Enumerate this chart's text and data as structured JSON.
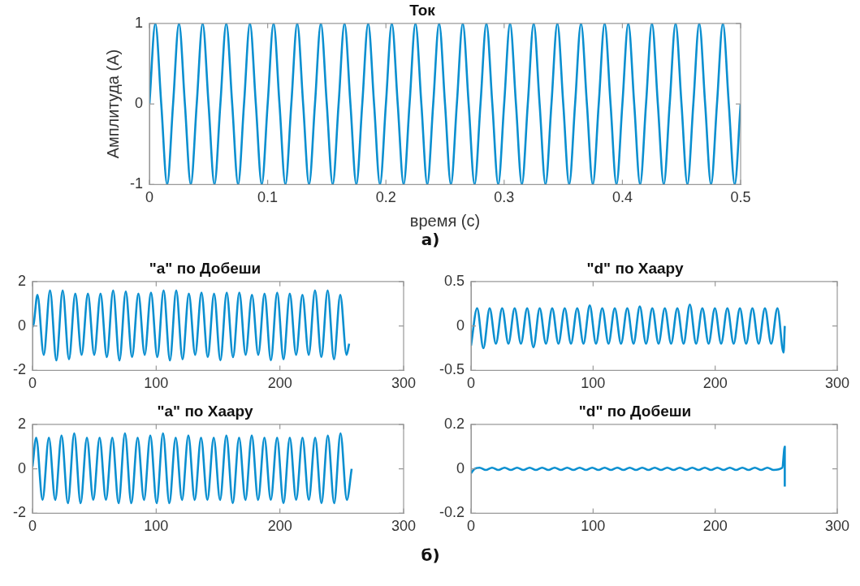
{
  "chart_data": [
    {
      "type": "line",
      "title": "Ток",
      "xlabel": "время (с)",
      "ylabel": "Амплитуда (А)",
      "annotations": [
        "а)"
      ],
      "xlim": [
        0,
        0.5
      ],
      "ylim": [
        -1,
        1
      ],
      "xticks": [
        0,
        0.1,
        0.2,
        0.3,
        0.4,
        0.5
      ],
      "yticks": [
        -1,
        0,
        1
      ],
      "grid": false,
      "series": [
        {
          "color": "#0a8fd0",
          "x": [
            0,
            0.005,
            0.01,
            0.015,
            0.02,
            0.025,
            0.03,
            0.035,
            0.04,
            0.045,
            0.05,
            0.055,
            0.06,
            0.065,
            0.07,
            0.075,
            0.08,
            0.085,
            0.09,
            0.095,
            0.1,
            0.105,
            0.11,
            0.115,
            0.12,
            0.125,
            0.13,
            0.135,
            0.14,
            0.145,
            0.15,
            0.155,
            0.16,
            0.165,
            0.17,
            0.175,
            0.18,
            0.185,
            0.19,
            0.195,
            0.2,
            0.205,
            0.21,
            0.215,
            0.22,
            0.225,
            0.23,
            0.235,
            0.24,
            0.245,
            0.25,
            0.255,
            0.26,
            0.265,
            0.27,
            0.275,
            0.28,
            0.285,
            0.29,
            0.295,
            0.3,
            0.305,
            0.31,
            0.315,
            0.32,
            0.325,
            0.33,
            0.335,
            0.34,
            0.345,
            0.35,
            0.355,
            0.36,
            0.365,
            0.37,
            0.375,
            0.38,
            0.385,
            0.39,
            0.395,
            0.4,
            0.405,
            0.41,
            0.415,
            0.42,
            0.425,
            0.43,
            0.435,
            0.44,
            0.445,
            0.45,
            0.455,
            0.46,
            0.465,
            0.47,
            0.475,
            0.48,
            0.485,
            0.49,
            0.495,
            0.5
          ],
          "values": [
            0,
            1,
            0,
            -1,
            0,
            1,
            0,
            -1,
            0,
            1,
            0,
            -1,
            0,
            1,
            0,
            -1,
            0,
            1,
            0,
            -1,
            0,
            1,
            0,
            -1,
            0,
            1,
            0,
            -1,
            0,
            1,
            0,
            -1,
            0,
            1,
            0,
            -1,
            0,
            1,
            0,
            -1,
            0,
            1,
            0,
            -1,
            0,
            1,
            0,
            -1,
            0,
            1,
            0,
            -1,
            0,
            1,
            0,
            -1,
            0,
            1,
            0,
            -1,
            0,
            1,
            0,
            -1,
            0,
            1,
            0,
            -1,
            0,
            1,
            0,
            -1,
            0,
            1,
            0,
            -1,
            0,
            1,
            0,
            -1,
            0,
            1,
            0,
            -1,
            0,
            1,
            0,
            -1,
            0,
            1,
            0,
            -1,
            0,
            1,
            0,
            -1,
            0,
            1,
            0,
            -1,
            0
          ]
        }
      ]
    },
    {
      "type": "line",
      "title": "\"a\" по Добеши",
      "xlim": [
        0,
        300
      ],
      "ylim": [
        -2,
        2
      ],
      "xticks": [
        0,
        100,
        200,
        300
      ],
      "yticks": [
        -2,
        0,
        2
      ],
      "grid": false,
      "series": [
        {
          "color": "#0a8fd0",
          "x": [
            0,
            1,
            4,
            9.1,
            14.2,
            19.3,
            24.4,
            29.5,
            34.6,
            39.7,
            44.8,
            49.9,
            55,
            60.1,
            65.2,
            70.3,
            75.4,
            80.5,
            85.6,
            90.7,
            95.8,
            100.9,
            106,
            111.1,
            116.2,
            121.3,
            126.4,
            131.5,
            136.6,
            141.7,
            146.8,
            151.9,
            157,
            162.1,
            167.2,
            172.3,
            177.4,
            182.5,
            187.6,
            192.7,
            197.8,
            202.9,
            208,
            213.1,
            218.2,
            223.3,
            228.4,
            233.5,
            238.6,
            243.7,
            248.8,
            253.9,
            256
          ],
          "values": [
            -0.05,
            0.1,
            1.4,
            -1.3,
            1.6,
            -1.55,
            1.6,
            -1.5,
            1.45,
            -1.3,
            1.45,
            -1.3,
            1.45,
            -1.4,
            1.6,
            -1.55,
            1.55,
            -1.4,
            1.45,
            -1.3,
            1.5,
            -1.4,
            1.6,
            -1.55,
            1.6,
            -1.5,
            1.45,
            -1.3,
            1.5,
            -1.4,
            1.45,
            -1.55,
            1.5,
            -1.4,
            1.5,
            -1.3,
            1.4,
            -1.3,
            1.45,
            -1.55,
            1.5,
            -1.5,
            1.45,
            -1.3,
            1.4,
            -1.3,
            1.6,
            -1.4,
            1.6,
            -1.5,
            1.4,
            -1.3,
            -0.8
          ]
        }
      ]
    },
    {
      "type": "line",
      "title": "\"d\" по Хаару",
      "xlim": [
        0,
        300
      ],
      "ylim": [
        -0.5,
        0.5
      ],
      "xticks": [
        0,
        100,
        200,
        300
      ],
      "yticks": [
        -0.5,
        0,
        0.5
      ],
      "grid": false,
      "series": [
        {
          "color": "#0a8fd0",
          "x": [
            0,
            5,
            10.125,
            15.25,
            20.375,
            25.5,
            30.625,
            35.75,
            40.875,
            46,
            51.125,
            56.25,
            61.375,
            66.5,
            71.625,
            76.75,
            81.875,
            87,
            92.125,
            97.25,
            102.375,
            107.5,
            112.625,
            117.75,
            122.875,
            128,
            133.125,
            138.25,
            143.375,
            148.5,
            153.625,
            158.75,
            163.875,
            169,
            174.125,
            179.25,
            184.375,
            189.5,
            194.625,
            199.75,
            204.875,
            210,
            215.125,
            220.25,
            225.375,
            230.5,
            235.625,
            240.75,
            245.875,
            251,
            256,
            257
          ],
          "values": [
            -0.22,
            0.2,
            -0.25,
            0.2,
            -0.2,
            0.2,
            -0.2,
            0.2,
            -0.2,
            0.2,
            -0.24,
            0.2,
            -0.2,
            0.2,
            -0.2,
            0.2,
            -0.2,
            0.2,
            -0.2,
            0.23,
            -0.2,
            0.2,
            -0.2,
            0.2,
            -0.2,
            0.2,
            -0.2,
            0.22,
            -0.2,
            0.2,
            -0.2,
            0.2,
            -0.2,
            0.2,
            -0.2,
            0.24,
            -0.2,
            0.2,
            -0.2,
            0.2,
            -0.2,
            0.2,
            -0.2,
            0.2,
            -0.2,
            0.2,
            -0.2,
            0.2,
            -0.2,
            0.2,
            -0.3,
            0
          ]
        }
      ]
    },
    {
      "type": "line",
      "title": "\"a\" по Хаару",
      "annotations": [
        "б)"
      ],
      "xlim": [
        0,
        300
      ],
      "ylim": [
        -2,
        2
      ],
      "xticks": [
        0,
        100,
        200,
        300
      ],
      "yticks": [
        -2,
        0,
        2
      ],
      "grid": false,
      "series": [
        {
          "color": "#0a8fd0",
          "x": [
            0,
            3,
            8.125,
            13.25,
            18.375,
            23.5,
            28.625,
            33.75,
            38.875,
            44,
            49.125,
            54.25,
            59.375,
            64.5,
            69.625,
            74.75,
            79.875,
            85,
            90.125,
            95.25,
            100.375,
            105.5,
            110.625,
            115.75,
            120.875,
            126,
            131.125,
            136.25,
            141.375,
            146.5,
            151.625,
            156.75,
            161.875,
            167,
            172.125,
            177.25,
            182.375,
            187.5,
            192.625,
            197.75,
            202.875,
            208,
            213.125,
            218.25,
            223.375,
            228.5,
            233.625,
            238.75,
            243.875,
            249,
            254.125,
            258
          ],
          "values": [
            0.1,
            1.4,
            -1.4,
            1.4,
            -1.4,
            1.5,
            -1.55,
            1.6,
            -1.55,
            1.4,
            -1.4,
            1.4,
            -1.4,
            1.4,
            -1.55,
            1.6,
            -1.55,
            1.4,
            -1.4,
            1.5,
            -1.55,
            1.6,
            -1.55,
            1.4,
            -1.4,
            1.5,
            -1.4,
            1.4,
            -1.4,
            1.4,
            -1.4,
            1.5,
            -1.55,
            1.4,
            -1.4,
            1.5,
            -1.4,
            1.4,
            -1.4,
            1.4,
            -1.55,
            1.4,
            -1.4,
            1.4,
            -1.4,
            1.4,
            -1.55,
            1.5,
            -1.55,
            1.6,
            -1.4,
            0
          ]
        }
      ]
    },
    {
      "type": "line",
      "title": "\"d\" по Добеши",
      "xlim": [
        0,
        300
      ],
      "ylim": [
        -0.2,
        0.2
      ],
      "xticks": [
        0,
        100,
        200,
        300
      ],
      "yticks": [
        -0.2,
        0,
        0.2
      ],
      "grid": false,
      "series": [
        {
          "color": "#0a8fd0",
          "x": [
            0,
            3,
            7,
            12.125,
            17.25,
            22.375,
            27.5,
            32.625,
            37.75,
            42.875,
            48,
            53.125,
            58.25,
            63.375,
            68.5,
            73.625,
            78.75,
            83.875,
            89,
            94.125,
            99.25,
            104.375,
            109.5,
            114.625,
            119.75,
            124.875,
            130,
            135.125,
            140.25,
            145.375,
            150.5,
            155.625,
            160.75,
            165.875,
            171,
            176.125,
            181.25,
            186.375,
            191.5,
            196.625,
            201.75,
            206.875,
            212,
            217.125,
            222.25,
            227.375,
            232.5,
            237.625,
            242.75,
            247.875,
            255,
            257,
            257
          ],
          "values": [
            -0.02,
            0,
            0.005,
            -0.005,
            0.005,
            -0.005,
            0.005,
            -0.005,
            0.005,
            -0.005,
            0.005,
            -0.005,
            0.005,
            -0.005,
            0.005,
            -0.005,
            0.005,
            -0.005,
            0.005,
            -0.005,
            0.005,
            -0.005,
            0.005,
            -0.005,
            0.005,
            -0.005,
            0.005,
            -0.005,
            0.005,
            -0.005,
            0.005,
            -0.005,
            0.005,
            -0.005,
            0.005,
            -0.005,
            0.005,
            -0.005,
            0.005,
            -0.005,
            0.005,
            -0.005,
            0.005,
            -0.005,
            0.005,
            -0.005,
            0.005,
            -0.005,
            0.005,
            -0.005,
            0.005,
            0.1,
            -0.08
          ]
        }
      ]
    }
  ]
}
